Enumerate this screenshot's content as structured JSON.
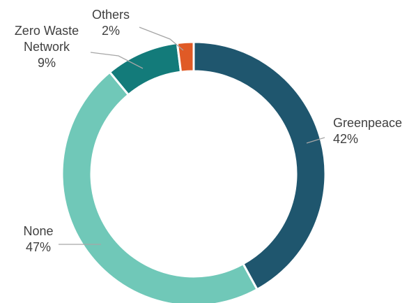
{
  "chart_data": {
    "type": "pie",
    "variant": "donut",
    "title": "",
    "start_angle_deg": 0,
    "direction": "clockwise",
    "slices": [
      {
        "name": "Greenpeace",
        "label_lines": [
          "Greenpeace"
        ],
        "value": 42,
        "value_label": "42%",
        "color": "#1f566e"
      },
      {
        "name": "None",
        "label_lines": [
          "None"
        ],
        "value": 47,
        "value_label": "47%",
        "color": "#70c8b8"
      },
      {
        "name": "Zero Waste Network",
        "label_lines": [
          "Zero Waste",
          "Network"
        ],
        "value": 9,
        "value_label": "9%",
        "color": "#137b7a"
      },
      {
        "name": "Others",
        "label_lines": [
          "Others"
        ],
        "value": 2,
        "value_label": "2%",
        "color": "#e05a26"
      }
    ],
    "legend": "none",
    "data_labels": "outside-with-leader-lines"
  }
}
